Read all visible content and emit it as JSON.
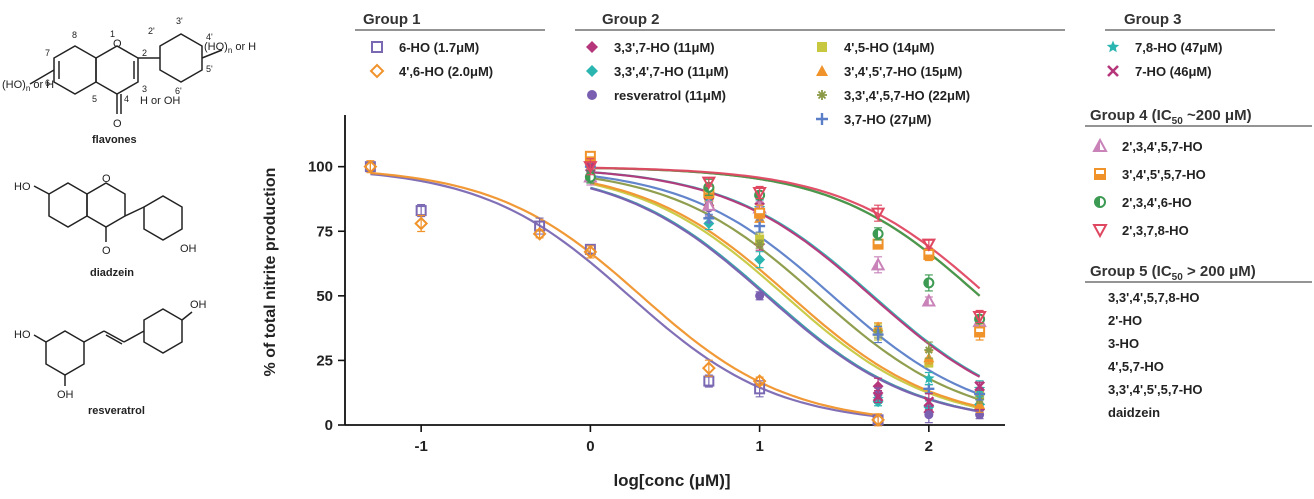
{
  "chart_data": {
    "type": "scatter",
    "xlabel": "log[conc (μM)]",
    "ylabel": "% of total nitrite production",
    "xlim": [
      -1.45,
      2.45
    ],
    "ylim": [
      0,
      120
    ],
    "x_ticks": [
      "-1",
      "0",
      "1",
      "2"
    ],
    "y_ticks": [
      "0",
      "25",
      "50",
      "75",
      "100"
    ],
    "grid": false,
    "legend_placement": "top",
    "series": [
      {
        "name": "6-HO (1.7μM)",
        "group": "Group 1",
        "marker": "square-open",
        "color": "#7b68b3",
        "fit": "sigmoid",
        "ic50_log": 0.23,
        "x": [
          -1.3,
          -1,
          -0.3,
          0,
          0.7,
          1,
          1.7
        ],
        "y": [
          100,
          83,
          77,
          68,
          17,
          14,
          2
        ]
      },
      {
        "name": "4',6-HO (2.0μM)",
        "group": "Group 1",
        "marker": "diamond-open",
        "color": "#f0932b",
        "fit": "sigmoid",
        "ic50_log": 0.3,
        "x": [
          -1.3,
          -1,
          -0.3,
          0,
          0.7,
          1,
          1.7
        ],
        "y": [
          100,
          78,
          74,
          67,
          22,
          17,
          2
        ]
      },
      {
        "name": "3,3',7-HO (11μM)",
        "group": "Group 2",
        "marker": "diamond",
        "color": "#b5367a",
        "fit": "sigmoid",
        "ic50_log": 1.05,
        "x": [
          0,
          0.7,
          1,
          1.7,
          2,
          2.3
        ],
        "y": [
          100,
          85,
          70,
          15,
          5,
          6
        ]
      },
      {
        "name": "3,3',4',7-HO (11μM)",
        "group": "Group 2",
        "marker": "diamond",
        "color": "#2ab5b0",
        "fit": "sigmoid",
        "ic50_log": 1.05,
        "x": [
          0,
          0.7,
          1,
          1.7,
          2,
          2.3
        ],
        "y": [
          101,
          78,
          64,
          9,
          7,
          8
        ]
      },
      {
        "name": "resveratrol (11μM)",
        "group": "Group 2",
        "marker": "circle",
        "color": "#7a5fb0",
        "fit": "sigmoid",
        "ic50_log": 1.04,
        "x": [
          0,
          0.7,
          1,
          1.7,
          2,
          2.3
        ],
        "y": [
          99,
          84,
          50,
          12,
          4,
          4
        ]
      },
      {
        "name": "4',5-HO (14μM)",
        "group": "Group 2",
        "marker": "square",
        "color": "#c8c840",
        "fit": "sigmoid",
        "ic50_log": 1.15,
        "x": [
          0,
          0.7,
          1,
          1.7,
          2,
          2.3
        ],
        "y": [
          100,
          88,
          72,
          36,
          24,
          12
        ]
      },
      {
        "name": "3',4',5',7-HO (15μM)",
        "group": "Group 2",
        "marker": "triangle",
        "color": "#f0932b",
        "fit": "sigmoid",
        "ic50_log": 1.18,
        "x": [
          0,
          0.7,
          1,
          1.7,
          2,
          2.3
        ],
        "y": [
          103,
          86,
          80,
          38,
          26,
          8
        ]
      },
      {
        "name": "3,3',4',5,7-HO (22μM)",
        "group": "Group 2",
        "marker": "star-asterisk",
        "color": "#8a9a46",
        "fit": "sigmoid",
        "ic50_log": 1.34,
        "x": [
          0,
          0.7,
          1,
          1.7,
          2,
          2.3
        ],
        "y": [
          102,
          88,
          70,
          36,
          29,
          10
        ]
      },
      {
        "name": "3,7-HO (27μM)",
        "group": "Group 2",
        "marker": "plus",
        "color": "#5b7ec9",
        "fit": "sigmoid",
        "ic50_log": 1.43,
        "x": [
          0,
          0.7,
          1,
          1.7,
          2,
          2.3
        ],
        "y": [
          100,
          80,
          77,
          35,
          14,
          12
        ]
      },
      {
        "name": "7,8-HO (47μM)",
        "group": "Group 3",
        "marker": "star",
        "color": "#2ab5b0",
        "fit": "sigmoid",
        "ic50_log": 1.67,
        "x": [
          0,
          0.7,
          1,
          1.7,
          2,
          2.3
        ],
        "y": [
          100,
          88,
          84,
          10,
          18,
          14
        ]
      },
      {
        "name": "7-HO (46μM)",
        "group": "Group 3",
        "marker": "cross",
        "color": "#b5367a",
        "fit": "sigmoid",
        "ic50_log": 1.66,
        "x": [
          0,
          0.7,
          1,
          1.7,
          2,
          2.3
        ],
        "y": [
          100,
          89,
          87,
          11,
          9,
          15
        ]
      },
      {
        "name": "2',3,4',5,7-HO",
        "group": "Group 4",
        "ic50_label": "IC50 ~200 μM",
        "marker": "triangle-half",
        "color": "#c983b8",
        "fit": "sigmoid",
        "ic50_log": 2.3,
        "x": [
          0,
          0.7,
          1,
          1.7,
          2,
          2.3
        ],
        "y": [
          96,
          85,
          84,
          62,
          48,
          40
        ]
      },
      {
        "name": "3',4',5',5,7-HO",
        "group": "Group 4",
        "ic50_label": "IC50 ~200 μM",
        "marker": "square-half",
        "color": "#f0932b",
        "fit": "sigmoid",
        "ic50_log": 2.3,
        "x": [
          0,
          0.7,
          1,
          1.7,
          2,
          2.3
        ],
        "y": [
          104,
          90,
          82,
          70,
          66,
          36
        ]
      },
      {
        "name": "2',3,4',6-HO",
        "group": "Group 4",
        "ic50_label": "IC50 ~200 μM",
        "marker": "circle-half",
        "color": "#3c9a52",
        "fit": "sigmoid",
        "ic50_log": 2.3,
        "x": [
          0,
          0.7,
          1,
          1.7,
          2,
          2.3
        ],
        "y": [
          96,
          92,
          89,
          74,
          55,
          41
        ]
      },
      {
        "name": "2',3,7,8-HO",
        "group": "Group 4",
        "ic50_label": "IC50 ~200 μM",
        "marker": "triangle-down-open",
        "color": "#e04862",
        "fit": "sigmoid",
        "ic50_log": 2.35,
        "x": [
          0,
          0.7,
          1,
          1.7,
          2,
          2.3
        ],
        "y": [
          100,
          94,
          90,
          82,
          70,
          42
        ]
      }
    ]
  },
  "legend": {
    "group1": {
      "title": "Group 1",
      "items": [
        "6-HO (1.7μM)",
        "4',6-HO (2.0μM)"
      ]
    },
    "group2": {
      "title": "Group 2",
      "items": [
        "3,3',7-HO (11μM)",
        "3,3',4',7-HO (11μM)",
        "resveratrol (11μM)",
        "4',5-HO (14μM)",
        "3',4',5',7-HO (15μM)",
        "3,3',4',5,7-HO (22μM)",
        "3,7-HO (27μM)"
      ]
    },
    "group3": {
      "title": "Group 3",
      "items": [
        "7,8-HO (47μM)",
        "7-HO (46μM)"
      ]
    },
    "group4": {
      "title_pre": "Group 4 (IC",
      "title_sub": "50",
      "title_post": " ~200 μM)",
      "items": [
        "2',3,4',5,7-HO",
        "3',4',5',5,7-HO",
        "2',3,4',6-HO",
        "2',3,7,8-HO"
      ]
    },
    "group5": {
      "title_pre": "Group 5 (IC",
      "title_sub": "50",
      "title_post": " > 200 μM)",
      "items": [
        "3,3',4',5,7,8-HO",
        "2'-HO",
        "3-HO",
        "4',5,7-HO",
        "3,3',4',5',5,7-HO",
        "daidzein"
      ]
    }
  },
  "structures": {
    "flavones": {
      "caption": "flavones",
      "labels": [
        "(HO)",
        "n",
        " or H",
        "(HO)",
        "n",
        " or H",
        "H or OH",
        "O",
        "O",
        "1",
        "2",
        "3",
        "4",
        "5",
        "6",
        "7",
        "8",
        "2'",
        "3'",
        "4'",
        "5'",
        "6'"
      ]
    },
    "diadzein": {
      "caption": "diadzein",
      "labels": [
        "HO",
        "O",
        "O",
        "OH"
      ]
    },
    "resveratrol": {
      "caption": "resveratrol",
      "labels": [
        "HO",
        "OH",
        "OH"
      ]
    }
  }
}
